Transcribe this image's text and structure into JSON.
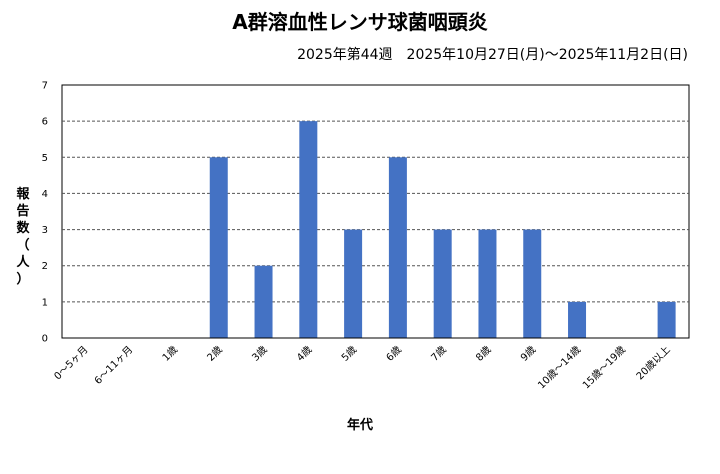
{
  "chart_data": {
    "type": "bar",
    "title": "A群溶血性レンサ球菌咽頭炎",
    "subtitle": "2025年第44週　2025年10月27日(月)～2025年11月2日(日)",
    "xlabel": "年代",
    "ylabel": "報告数（人）",
    "ylabel_chars": [
      "報",
      "告",
      "数",
      "（",
      "人",
      "）"
    ],
    "categories": [
      "0～5ヶ月",
      "6～11ヶ月",
      "1歳",
      "2歳",
      "3歳",
      "4歳",
      "5歳",
      "6歳",
      "7歳",
      "8歳",
      "9歳",
      "10歳～14歳",
      "15歳～19歳",
      "20歳以上"
    ],
    "values": [
      0,
      0,
      0,
      5,
      2,
      6,
      3,
      5,
      3,
      3,
      3,
      1,
      0,
      1
    ],
    "ylim": [
      0,
      7
    ],
    "yticks": [
      "0",
      "1",
      "2",
      "3",
      "4",
      "5",
      "6",
      "7"
    ],
    "grid": true,
    "bar_color": "#4472C4"
  }
}
